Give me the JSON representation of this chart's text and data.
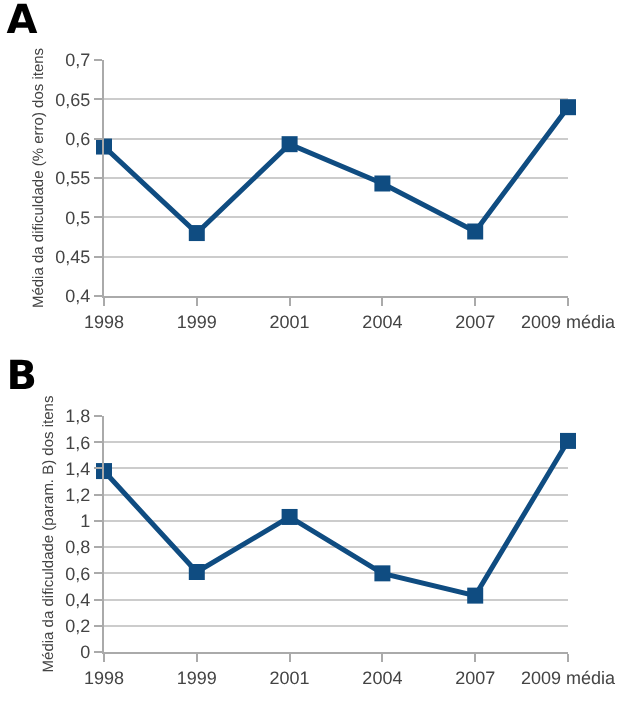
{
  "chart_data": [
    {
      "type": "line",
      "title": "A",
      "ylabel": "Média da dificuldade (% erro) dos itens",
      "categories": [
        "1998",
        "1999",
        "2001",
        "2004",
        "2007",
        "2009 média"
      ],
      "series": [
        {
          "color": "#0f4c81",
          "values": [
            0.59,
            0.48,
            0.593,
            0.543,
            0.482,
            0.64
          ]
        }
      ],
      "ylim": [
        0.4,
        0.7
      ],
      "yticks": [
        {
          "value": 0.4,
          "label": "0,4"
        },
        {
          "value": 0.45,
          "label": "0,45"
        },
        {
          "value": 0.5,
          "label": "0,5"
        },
        {
          "value": 0.55,
          "label": "0,55"
        },
        {
          "value": 0.6,
          "label": "0,6"
        },
        {
          "value": 0.65,
          "label": "0,65"
        },
        {
          "value": 0.7,
          "label": "0,7"
        }
      ],
      "grid": "y",
      "marker": "square",
      "line_style": "solid"
    },
    {
      "type": "line",
      "title": "B",
      "ylabel": "Média da dificuldade (param. B) dos itens",
      "categories": [
        "1998",
        "1999",
        "2001",
        "2004",
        "2007",
        "2009 média"
      ],
      "series": [
        {
          "color": "#0f4c81",
          "values": [
            1.38,
            0.61,
            1.03,
            0.6,
            0.43,
            1.61
          ]
        }
      ],
      "ylim": [
        0,
        1.8
      ],
      "yticks": [
        0,
        {
          "value": 0.2,
          "label": "0,2"
        },
        {
          "value": 0.4,
          "label": "0,4"
        },
        {
          "value": 0.6,
          "label": "0,6"
        },
        {
          "value": 0.8,
          "label": "0,8"
        },
        1,
        {
          "value": 1.2,
          "label": "1,2"
        },
        {
          "value": 1.4,
          "label": "1,4"
        },
        {
          "value": 1.6,
          "label": "1,6"
        },
        {
          "value": 1.8,
          "label": "1,8"
        }
      ],
      "grid": "y",
      "marker": "square",
      "line_style": "solid"
    }
  ]
}
